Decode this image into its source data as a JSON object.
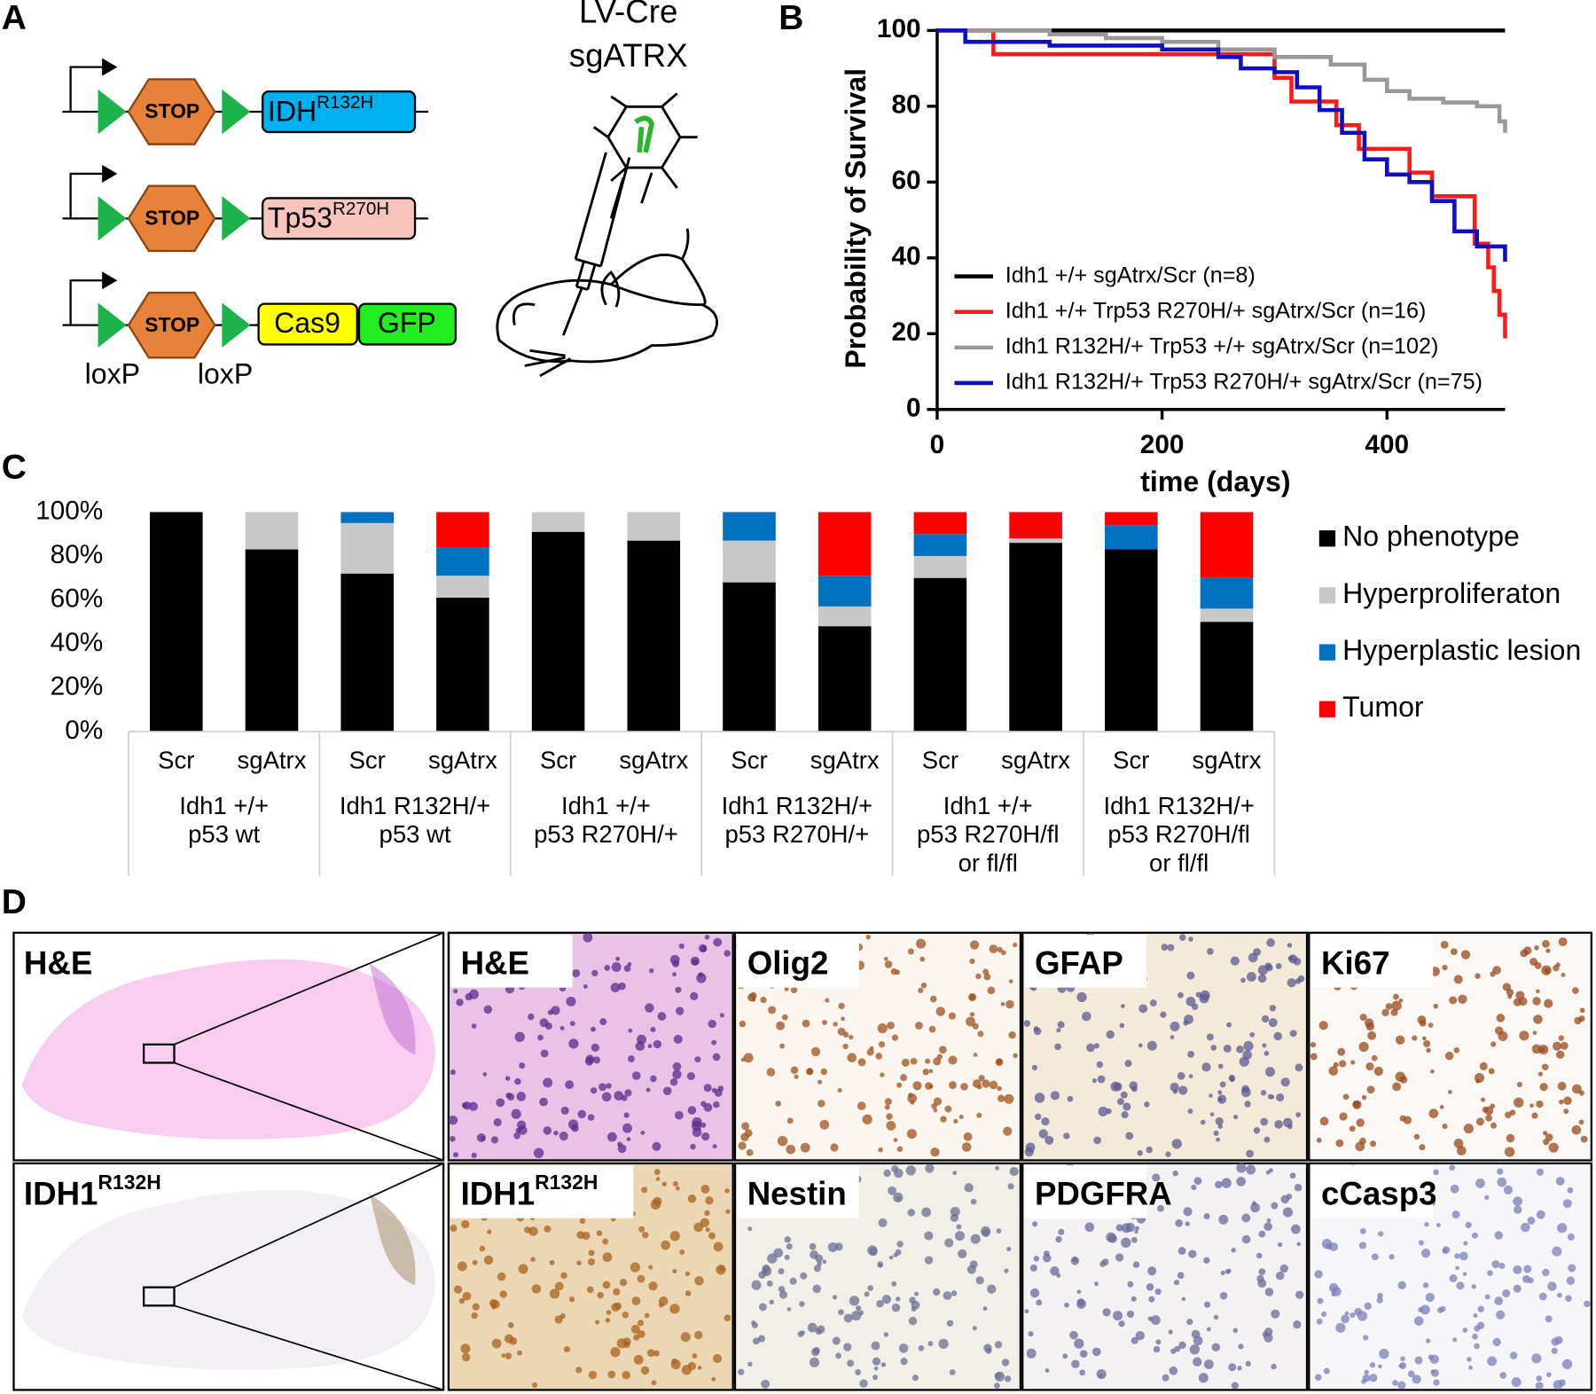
{
  "panel_labels": [
    "A",
    "B",
    "C",
    "D"
  ],
  "diagram": {
    "constructs": [
      {
        "label": "IDH",
        "sup": "R132H"
      },
      {
        "label": "Tp53",
        "sup": "R270H"
      }
    ],
    "cassette": [
      "Cas9",
      "GFP"
    ],
    "stop": "STOP",
    "loxp": [
      "loxP",
      "loxP"
    ],
    "virus": [
      "LV-Cre",
      "sgATRX"
    ]
  },
  "chart_data": [
    {
      "type": "line",
      "step": true,
      "xlabel": "time (days)",
      "ylabel": "Probability of Survival",
      "xlim": [
        0,
        505
      ],
      "ylim": [
        0,
        100
      ],
      "xticks": [
        0,
        200,
        400
      ],
      "yticks": [
        0,
        20,
        40,
        60,
        80,
        100
      ],
      "grid": false,
      "legend": "lower left",
      "series": [
        {
          "name": "Idh1 +/+ sgAtrx/Scr (n=8)",
          "color": "#000000",
          "x": [
            0,
            505
          ],
          "values": [
            100,
            100
          ]
        },
        {
          "name": "Idh1 +/+ Trp53 R270H/+ sgAtrx/Scr (n=16)",
          "color": "#ff1a1a",
          "x": [
            0,
            50,
            300,
            315,
            355,
            375,
            420,
            440,
            478,
            490,
            495,
            500,
            505
          ],
          "values": [
            100,
            93.75,
            87.5,
            81.25,
            75,
            68.75,
            62.5,
            56.25,
            43.75,
            37.5,
            31.25,
            25,
            18.75
          ]
        },
        {
          "name": "Idh1 R132H/+ Trp53 +/+ sgAtrx/Scr (n=102)",
          "color": "#999999",
          "x": [
            0,
            100,
            150,
            200,
            250,
            300,
            350,
            380,
            400,
            420,
            450,
            480,
            500,
            505
          ],
          "values": [
            100,
            99,
            98,
            97,
            95,
            93,
            91,
            87,
            84,
            82,
            81,
            80,
            76,
            73
          ]
        },
        {
          "name": "Idh1 R132H/+ Trp53 R270H/+ sgAtrx/Scr (n=75)",
          "color": "#1010c0",
          "x": [
            0,
            25,
            100,
            200,
            250,
            270,
            300,
            320,
            340,
            360,
            380,
            400,
            420,
            440,
            460,
            480,
            505
          ],
          "values": [
            100,
            97,
            96,
            95,
            93,
            90,
            89,
            85,
            79,
            73,
            66,
            62,
            60,
            55,
            47,
            43,
            39
          ]
        }
      ]
    },
    {
      "type": "stacked_bar",
      "categories": [
        "Scr",
        "sgAtrx",
        "Scr",
        "sgAtrx",
        "Scr",
        "sgAtrx",
        "Scr",
        "sgAtrx",
        "Scr",
        "sgAtrx",
        "Scr",
        "sgAtrx"
      ],
      "groups": [
        [
          "Idh1 +/+",
          "p53 wt"
        ],
        [
          "Idh1 R132H/+",
          "p53 wt"
        ],
        [
          "Idh1 +/+",
          "p53 R270H/+"
        ],
        [
          "Idh1 R132H/+",
          "p53 R270H/+"
        ],
        [
          "Idh1 +/+",
          "p53 R270H/fl",
          "or fl/fl"
        ],
        [
          "Idh1 R132H/+",
          "p53 R270H/fl",
          "or fl/fl"
        ]
      ],
      "ylim": [
        0,
        100
      ],
      "yticks": [
        {
          "value": 0,
          "label": "0%"
        },
        {
          "value": 20,
          "label": "20%"
        },
        {
          "value": 40,
          "label": "40%"
        },
        {
          "value": 60,
          "label": "60%"
        },
        {
          "value": 80,
          "label": "80%"
        },
        {
          "value": 100,
          "label": "100%"
        }
      ],
      "grid": false,
      "legend": "right",
      "series": [
        {
          "name": "No phenotype",
          "color": "#000000",
          "values": [
            100,
            83,
            72,
            61,
            91,
            87,
            68,
            48,
            70,
            86,
            83,
            50
          ]
        },
        {
          "name": "Hyperproliferaton",
          "color": "#c8c8c8",
          "values": [
            0,
            17,
            23,
            10,
            9,
            13,
            19,
            9,
            10,
            2,
            0,
            6
          ]
        },
        {
          "name": "Hyperplastic lesion",
          "color": "#0070c0",
          "values": [
            0,
            0,
            5,
            13,
            0,
            0,
            13,
            14,
            10,
            0,
            11,
            14
          ]
        },
        {
          "name": "Tumor",
          "color": "#ff0000",
          "values": [
            0,
            0,
            0,
            16,
            0,
            0,
            0,
            29,
            10,
            12,
            6,
            30
          ]
        }
      ]
    }
  ],
  "micrographs": {
    "rows": [
      [
        {
          "label": "H&E"
        },
        {
          "label": "H&E"
        },
        {
          "label": "Olig2"
        },
        {
          "label": "GFAP"
        },
        {
          "label": "Ki67"
        }
      ],
      [
        {
          "label": "IDH1",
          "sup": "R132H"
        },
        {
          "label": "IDH1",
          "sup": "R132H"
        },
        {
          "label": "Nestin"
        },
        {
          "label": "PDGFRA"
        },
        {
          "label": "cCasp3"
        }
      ]
    ]
  }
}
